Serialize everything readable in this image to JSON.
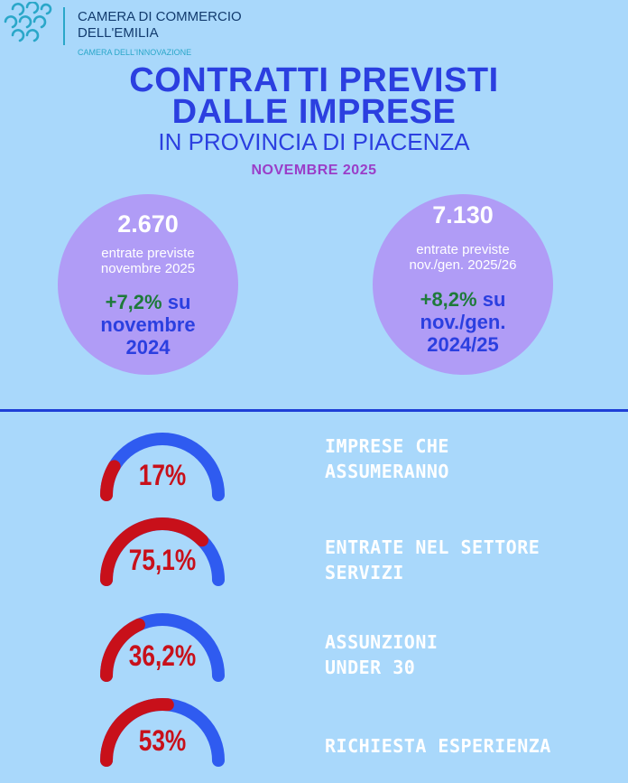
{
  "header": {
    "org_line1": "CAMERA DI COMMERCIO",
    "org_line2": "DELL'EMILIA",
    "tagline": "CAMERA DELL'INNOVAZIONE",
    "title_line1": "CONTRATTI PREVISTI",
    "title_line2": "DALLE IMPRESE",
    "title_line3": "IN PROVINCIA DI PIACENZA",
    "period": "NOVEMBRE  2025"
  },
  "stats": [
    {
      "value": "2.670",
      "desc_line1": "entrate previste",
      "desc_line2": "novembre 2025",
      "change": "+7,2%",
      "comparison_line1": " su",
      "comparison_line2": "novembre",
      "comparison_line3": "2024"
    },
    {
      "value": "7.130",
      "desc_line1": "entrate previste",
      "desc_line2": "nov./gen. 2025/26",
      "change": "+8,2%",
      "comparison_line1": " su",
      "comparison_line2": "nov./gen.",
      "comparison_line3": "2024/25"
    }
  ],
  "gauges": [
    {
      "value_text": "17%",
      "fraction": 0.17,
      "label_line1": "IMPRESE CHE",
      "label_line2": "ASSUMERANNO"
    },
    {
      "value_text": "75,1%",
      "fraction": 0.751,
      "label_line1": "ENTRATE NEL SETTORE",
      "label_line2": "SERVIZI"
    },
    {
      "value_text": "36,2%",
      "fraction": 0.362,
      "label_line1": "ASSUNZIONI",
      "label_line2": "UNDER 30"
    },
    {
      "value_text": "53%",
      "fraction": 0.53,
      "label_line1": "RICHIESTA ESPERIENZA",
      "label_line2": ""
    }
  ],
  "colors": {
    "background": "#a9d8fb",
    "title_blue": "#2b3fe0",
    "circle": "#b09cf6",
    "gauge_fill": "#c8101a",
    "gauge_track": "#2f5bf0",
    "change_green": "#1e7a3a",
    "period_purple": "#9a3ec8"
  }
}
